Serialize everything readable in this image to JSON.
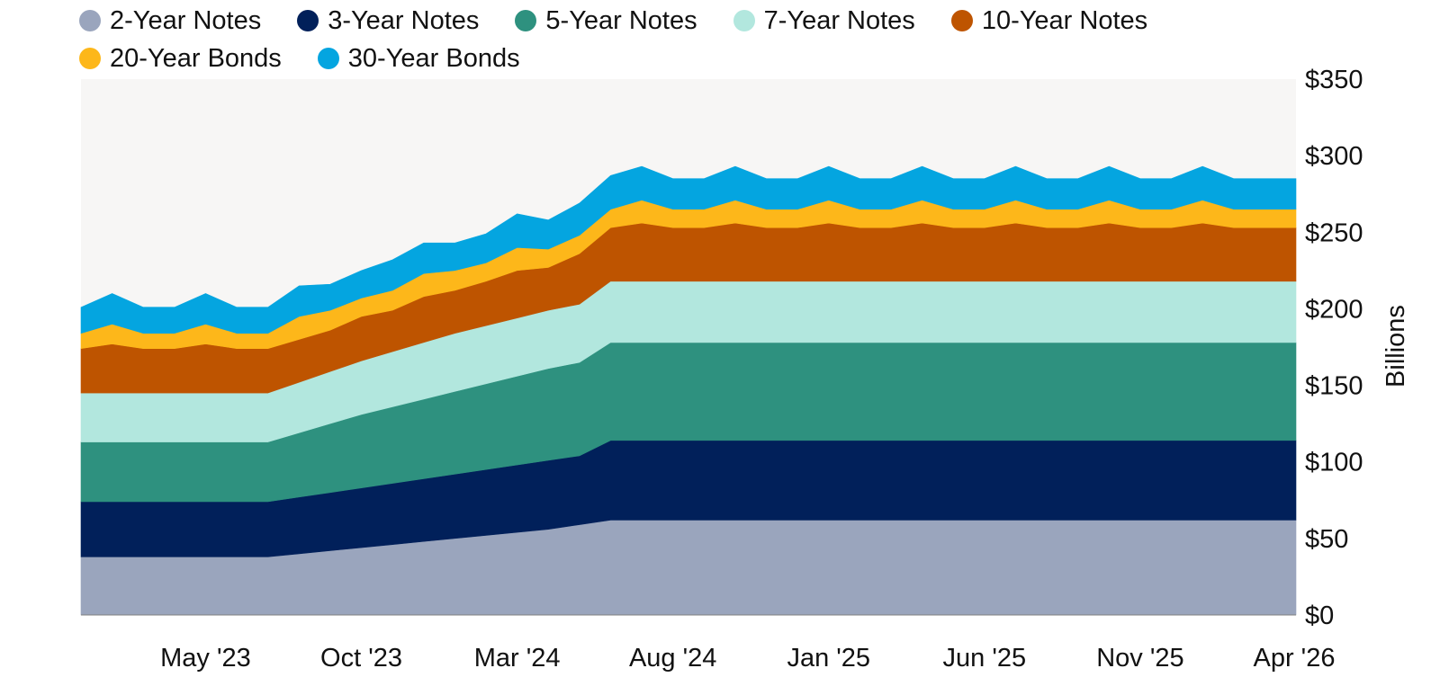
{
  "chart_data": {
    "type": "area",
    "stacked": true,
    "title": "",
    "xlabel": "",
    "ylabel": "Billions",
    "ylim": [
      0,
      350
    ],
    "y_ticks": [
      0,
      50,
      100,
      150,
      200,
      250,
      300,
      350
    ],
    "y_tick_labels": [
      "$0",
      "$50",
      "$100",
      "$150",
      "$200",
      "$250",
      "$300",
      "$350"
    ],
    "y_axis_position": "right",
    "x_tick_labels": [
      "May '23",
      "Oct '23",
      "Mar '24",
      "Aug '24",
      "Jan '25",
      "Jun '25",
      "Nov '25",
      "Apr '26"
    ],
    "x_ticks": [
      "May '23",
      "Oct '23",
      "Mar '24",
      "Aug '24",
      "Jan '25",
      "Jun '25",
      "Nov '25",
      "Apr '26"
    ],
    "x": [
      "Jan '23",
      "Feb '23",
      "Mar '23",
      "Apr '23",
      "May '23",
      "Jun '23",
      "Jul '23",
      "Aug '23",
      "Sep '23",
      "Oct '23",
      "Nov '23",
      "Dec '23",
      "Jan '24",
      "Feb '24",
      "Mar '24",
      "Apr '24",
      "May '24",
      "Jun '24",
      "Jul '24",
      "Aug '24",
      "Sep '24",
      "Oct '24",
      "Nov '24",
      "Dec '24",
      "Jan '25",
      "Feb '25",
      "Mar '25",
      "Apr '25",
      "May '25",
      "Jun '25",
      "Jul '25",
      "Aug '25",
      "Sep '25",
      "Oct '25",
      "Nov '25",
      "Dec '25",
      "Jan '26",
      "Feb '26",
      "Mar '26",
      "Apr '26"
    ],
    "legend_position": "top-left",
    "grid": false,
    "plot_background": "#f7f6f5",
    "series": [
      {
        "name": "2-Year Notes",
        "color": "#9aa5bd",
        "values": [
          38,
          38,
          38,
          38,
          38,
          38,
          38,
          40,
          42,
          44,
          46,
          48,
          50,
          52,
          54,
          56,
          59,
          62,
          62,
          62,
          62,
          62,
          62,
          62,
          62,
          62,
          62,
          62,
          62,
          62,
          62,
          62,
          62,
          62,
          62,
          62,
          62,
          62,
          62,
          62
        ]
      },
      {
        "name": "3-Year Notes",
        "color": "#01205a",
        "values": [
          36,
          36,
          36,
          36,
          36,
          36,
          36,
          37,
          38,
          39,
          40,
          41,
          42,
          43,
          44,
          45,
          45,
          52,
          52,
          52,
          52,
          52,
          52,
          52,
          52,
          52,
          52,
          52,
          52,
          52,
          52,
          52,
          52,
          52,
          52,
          52,
          52,
          52,
          52,
          52
        ]
      },
      {
        "name": "5-Year Notes",
        "color": "#2e917f",
        "values": [
          39,
          39,
          39,
          39,
          39,
          39,
          39,
          42,
          45,
          48,
          50,
          52,
          54,
          56,
          58,
          60,
          61,
          64,
          64,
          64,
          64,
          64,
          64,
          64,
          64,
          64,
          64,
          64,
          64,
          64,
          64,
          64,
          64,
          64,
          64,
          64,
          64,
          64,
          64,
          64
        ]
      },
      {
        "name": "7-Year Notes",
        "color": "#b2e7de",
        "values": [
          32,
          32,
          32,
          32,
          32,
          32,
          32,
          33,
          34,
          35,
          36,
          37,
          38,
          38,
          38,
          38,
          38,
          40,
          40,
          40,
          40,
          40,
          40,
          40,
          40,
          40,
          40,
          40,
          40,
          40,
          40,
          40,
          40,
          40,
          40,
          40,
          40,
          40,
          40,
          40
        ]
      },
      {
        "name": "10-Year Notes",
        "color": "#be5400",
        "values": [
          29,
          32,
          29,
          29,
          32,
          29,
          29,
          28,
          27,
          29,
          27,
          30,
          28,
          29,
          31,
          28,
          33,
          35,
          38,
          35,
          35,
          38,
          35,
          35,
          38,
          35,
          35,
          38,
          35,
          35,
          38,
          35,
          35,
          38,
          35,
          35,
          38,
          35,
          35,
          35
        ]
      },
      {
        "name": "20-Year Bonds",
        "color": "#fdb71a",
        "values": [
          10,
          13,
          10,
          10,
          13,
          10,
          10,
          15,
          13,
          12,
          13,
          15,
          13,
          12,
          15,
          12,
          12,
          12,
          15,
          12,
          12,
          15,
          12,
          12,
          15,
          12,
          12,
          15,
          12,
          12,
          15,
          12,
          12,
          15,
          12,
          12,
          15,
          12,
          12,
          12
        ]
      },
      {
        "name": "30-Year Bonds",
        "color": "#04a5e0",
        "values": [
          17,
          20,
          17,
          17,
          20,
          17,
          17,
          20,
          17,
          18,
          20,
          20,
          18,
          19,
          22,
          19,
          21,
          22,
          22,
          20,
          20,
          22,
          20,
          20,
          22,
          20,
          20,
          22,
          20,
          20,
          22,
          20,
          20,
          22,
          20,
          20,
          22,
          20,
          20,
          20
        ]
      }
    ]
  }
}
